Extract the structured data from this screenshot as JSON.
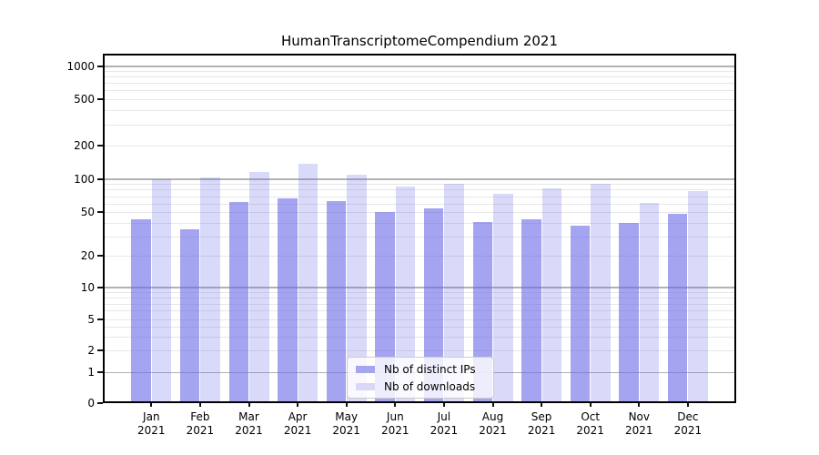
{
  "chart_data": {
    "type": "bar",
    "title": "HumanTranscriptomeCompendium 2021",
    "year": "2021",
    "months": [
      "Jan",
      "Feb",
      "Mar",
      "Apr",
      "May",
      "Jun",
      "Jul",
      "Aug",
      "Sep",
      "Oct",
      "Nov",
      "Dec"
    ],
    "categories": [
      "Jan 2021",
      "Feb 2021",
      "Mar 2021",
      "Apr 2021",
      "May 2021",
      "Jun 2021",
      "Jul 2021",
      "Aug 2021",
      "Sep 2021",
      "Oct 2021",
      "Nov 2021",
      "Dec 2021"
    ],
    "series": [
      {
        "name": "Nb of distinct IPs",
        "color": "#a6a6f0",
        "values": [
          43,
          35,
          62,
          67,
          63,
          50,
          54,
          41,
          43,
          38,
          40,
          48
        ]
      },
      {
        "name": "Nb of downloads",
        "color": "#d9d9f7",
        "values": [
          100,
          103,
          116,
          137,
          110,
          85,
          90,
          73,
          82,
          91,
          61,
          78
        ]
      }
    ],
    "y_ticks": [
      0,
      1,
      2,
      5,
      10,
      20,
      50,
      100,
      200,
      500,
      1000
    ],
    "y_scale": "log-like (pseudo-log with 0 baseline)",
    "ylim": [
      0,
      1300
    ],
    "xlabel": "",
    "ylabel": "",
    "grid": "horizontal, major (decades) dark + minor light",
    "legend_position": "lower center, inside plot",
    "colors": {
      "bar_distinct_ips": "#a6a6f0",
      "bar_downloads": "#d9d9f7",
      "grid_major": "#b2b2b2",
      "grid_minor": "#e7e7e7",
      "axis": "#000000"
    }
  }
}
